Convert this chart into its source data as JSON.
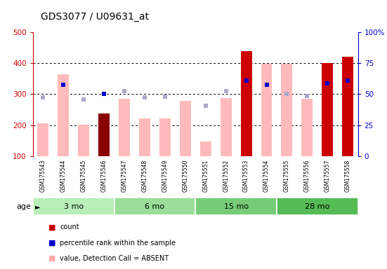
{
  "title": "GDS3077 / U09631_at",
  "samples": [
    "GSM175543",
    "GSM175544",
    "GSM175545",
    "GSM175546",
    "GSM175547",
    "GSM175548",
    "GSM175549",
    "GSM175550",
    "GSM175551",
    "GSM175552",
    "GSM175553",
    "GSM175554",
    "GSM175555",
    "GSM175556",
    "GSM175557",
    "GSM175558"
  ],
  "groups": [
    {
      "label": "3 mo",
      "indices": [
        0,
        1,
        2,
        3
      ]
    },
    {
      "label": "6 mo",
      "indices": [
        4,
        5,
        6,
        7
      ]
    },
    {
      "label": "15 mo",
      "indices": [
        8,
        9,
        10,
        11
      ]
    },
    {
      "label": "28 mo",
      "indices": [
        12,
        13,
        14,
        15
      ]
    }
  ],
  "group_colors": [
    "#b8eeb8",
    "#99dd99",
    "#77cc77",
    "#55bb55"
  ],
  "count_values": [
    null,
    null,
    null,
    238,
    null,
    null,
    null,
    null,
    null,
    null,
    440,
    null,
    null,
    null,
    400,
    422
  ],
  "percentile_values": [
    null,
    330,
    null,
    300,
    null,
    null,
    null,
    null,
    null,
    null,
    345,
    330,
    null,
    null,
    335,
    345
  ],
  "value_absent": [
    205,
    365,
    202,
    null,
    285,
    222,
    222,
    278,
    148,
    288,
    null,
    398,
    398,
    285,
    null,
    null
  ],
  "rank_absent": [
    290,
    null,
    282,
    null,
    310,
    290,
    292,
    null,
    262,
    310,
    null,
    null,
    300,
    295,
    null,
    null
  ],
  "ylim_left": [
    100,
    500
  ],
  "ylim_right": [
    0,
    100
  ],
  "yticks_left": [
    100,
    200,
    300,
    400,
    500
  ],
  "yticks_right": [
    0,
    25,
    50,
    75,
    100
  ],
  "grid_lines": [
    200,
    300,
    400
  ],
  "legend_colors": [
    "#cc0000",
    "#0000cc",
    "#ffaaaa",
    "#bbbbdd"
  ],
  "legend_labels": [
    "count",
    "percentile rank within the sample",
    "value, Detection Call = ABSENT",
    "rank, Detection Call = ABSENT"
  ],
  "age_label": "age"
}
